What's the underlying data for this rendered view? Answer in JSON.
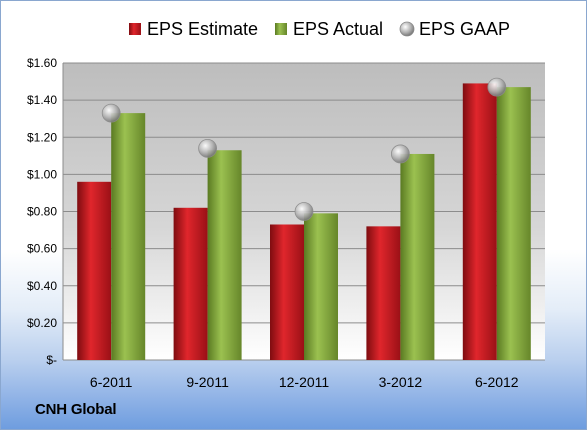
{
  "company": "CNH Global",
  "colors": {
    "estimate": "#c0141c",
    "actual": "#7ea23a",
    "gaap": "#b8b8b8"
  },
  "chart_data": {
    "type": "bar",
    "title": "",
    "xlabel": "",
    "ylabel": "",
    "categories": [
      "6-2011",
      "9-2011",
      "12-2011",
      "3-2012",
      "6-2012"
    ],
    "series": [
      {
        "name": "EPS Estimate",
        "type": "bar",
        "values": [
          0.96,
          0.82,
          0.73,
          0.72,
          1.49
        ]
      },
      {
        "name": "EPS Actual",
        "type": "bar",
        "values": [
          1.33,
          1.13,
          0.79,
          1.11,
          1.47
        ]
      },
      {
        "name": "EPS GAAP",
        "type": "scatter",
        "values": [
          1.33,
          1.14,
          0.8,
          1.11,
          1.47
        ]
      }
    ],
    "ylim": [
      0,
      1.6
    ],
    "yticks": [
      0,
      0.2,
      0.4,
      0.6,
      0.8,
      1.0,
      1.2,
      1.4,
      1.6
    ],
    "ytick_labels": [
      "$-",
      "$0.20",
      "$0.40",
      "$0.60",
      "$0.80",
      "$1.00",
      "$1.20",
      "$1.40",
      "$1.60"
    ],
    "grid": true,
    "legend_position": "top"
  }
}
